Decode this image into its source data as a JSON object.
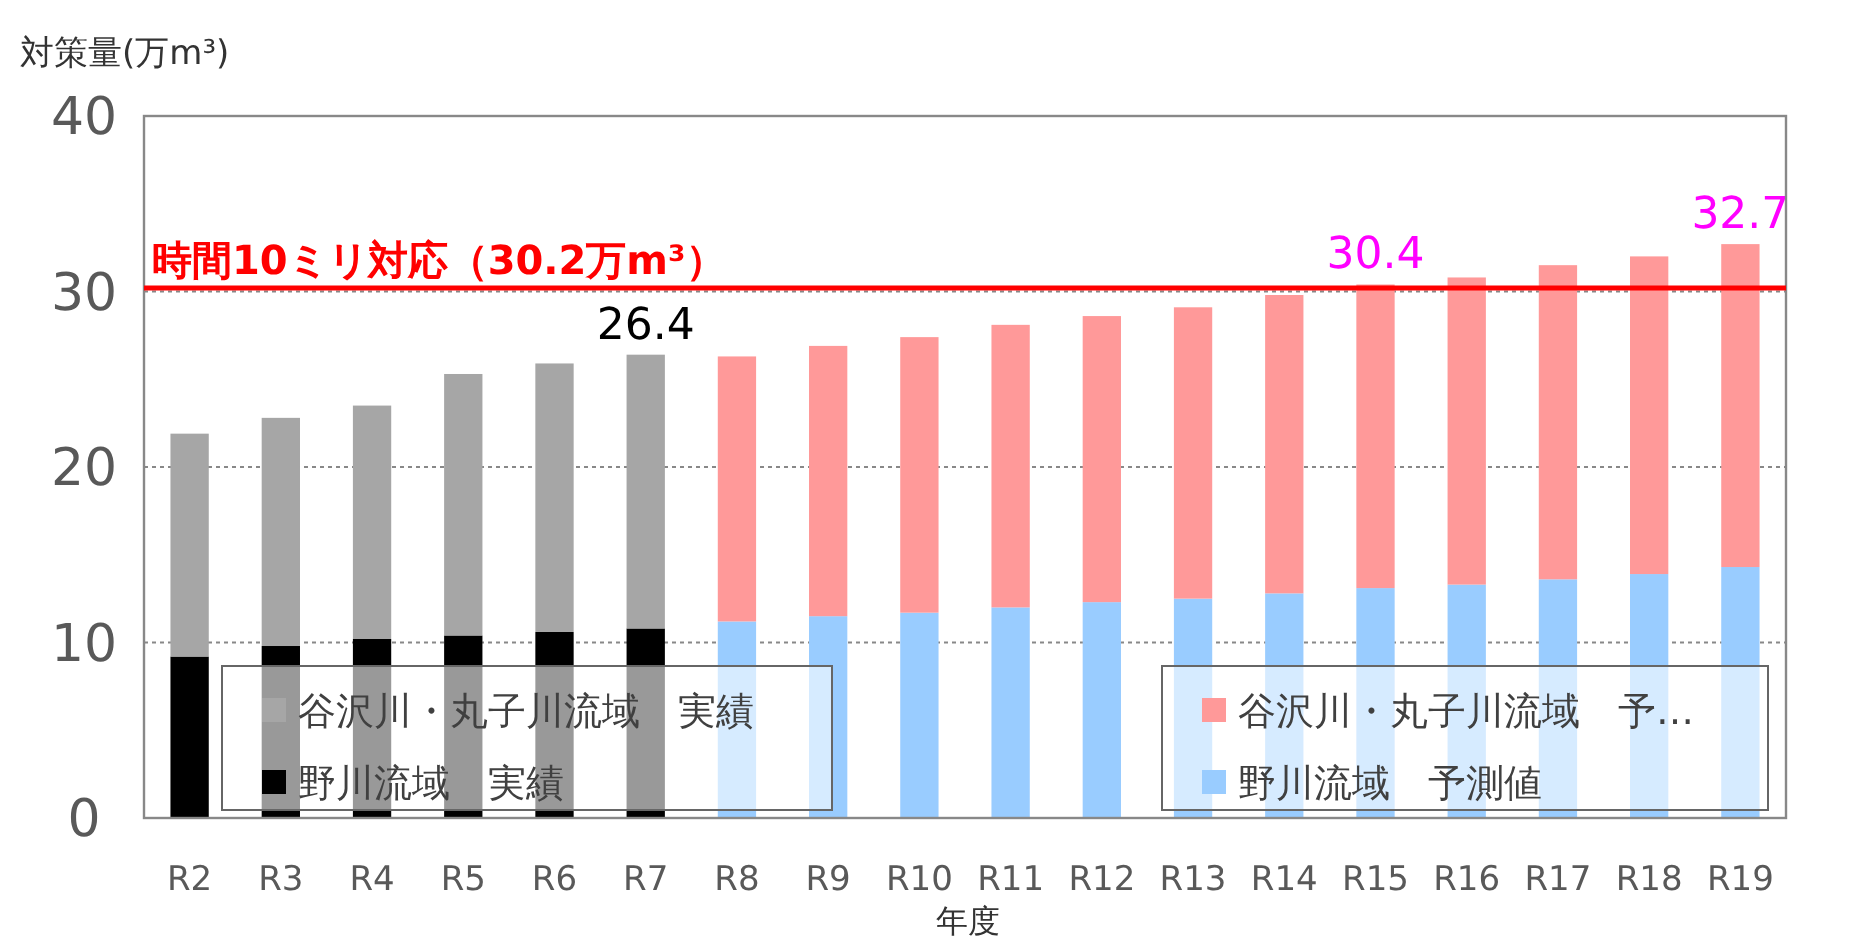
{
  "chart_data": {
    "type": "bar",
    "stacked": true,
    "ylabel": "対策量(万m³)",
    "xlabel": "年度",
    "categories": [
      "R2",
      "R3",
      "R4",
      "R5",
      "R6",
      "R7",
      "R8",
      "R9",
      "R10",
      "R11",
      "R12",
      "R13",
      "R14",
      "R15",
      "R16",
      "R17",
      "R18",
      "R19"
    ],
    "series": [
      {
        "name": "野川流域　実績",
        "color": "#000000",
        "values": [
          9.2,
          9.8,
          10.2,
          10.4,
          10.6,
          10.8,
          null,
          null,
          null,
          null,
          null,
          null,
          null,
          null,
          null,
          null,
          null,
          null
        ]
      },
      {
        "name": "野川流域　予測値",
        "color": "#99ccff",
        "values": [
          null,
          null,
          null,
          null,
          null,
          null,
          11.2,
          11.5,
          11.7,
          12.0,
          12.3,
          12.5,
          12.8,
          13.1,
          13.3,
          13.6,
          13.9,
          14.3
        ]
      },
      {
        "name": "谷沢川・丸子川流域　実績",
        "color": "#a6a6a6",
        "values": [
          12.7,
          13.0,
          13.3,
          14.9,
          15.3,
          15.6,
          null,
          null,
          null,
          null,
          null,
          null,
          null,
          null,
          null,
          null,
          null,
          null
        ]
      },
      {
        "name": "谷沢川・丸子川流域　予…",
        "color": "#ff9999",
        "values": [
          null,
          null,
          null,
          null,
          null,
          null,
          15.1,
          15.4,
          15.7,
          16.1,
          16.3,
          16.6,
          17.0,
          17.3,
          17.5,
          17.9,
          18.1,
          18.4
        ]
      }
    ],
    "totals": [
      null,
      null,
      null,
      null,
      null,
      "26.4",
      null,
      null,
      null,
      null,
      null,
      null,
      null,
      "30.4",
      null,
      null,
      null,
      "32.7"
    ],
    "ylim": [
      0,
      40
    ],
    "yticks": [
      0,
      10,
      20,
      30,
      40
    ],
    "grid": "y",
    "legend": "bottom",
    "ref_lines": [
      {
        "axis": "y",
        "value": 30.2,
        "label": "時間10ミリ対応（30.2万m³）",
        "color": "#ff0000"
      }
    ]
  }
}
